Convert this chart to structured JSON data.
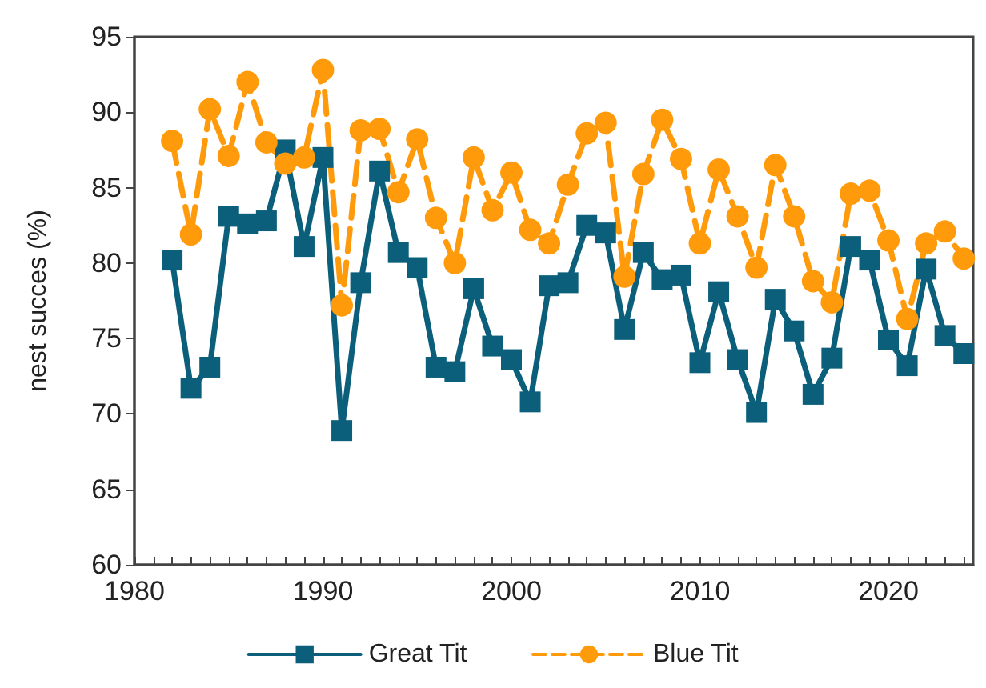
{
  "chart_data": {
    "type": "line",
    "ylabel": "nest succes (%)",
    "x": [
      1982,
      1983,
      1984,
      1985,
      1986,
      1987,
      1988,
      1989,
      1990,
      1991,
      1992,
      1993,
      1994,
      1995,
      1996,
      1997,
      1998,
      1999,
      2000,
      2001,
      2002,
      2003,
      2004,
      2005,
      2006,
      2007,
      2008,
      2009,
      2010,
      2011,
      2012,
      2013,
      2014,
      2015,
      2016,
      2017,
      2018,
      2019,
      2020,
      2021,
      2022,
      2023,
      2024
    ],
    "series": [
      {
        "name": "Great Tit",
        "color": "#0b5f7a",
        "marker": "square",
        "line_style": "solid",
        "values": [
          80.2,
          71.7,
          73.1,
          83.1,
          82.6,
          82.8,
          87.5,
          81.1,
          87.0,
          68.9,
          78.7,
          86.1,
          80.7,
          79.7,
          73.1,
          72.8,
          78.3,
          74.5,
          73.6,
          70.8,
          78.5,
          78.7,
          82.5,
          82.0,
          75.6,
          80.7,
          78.9,
          79.2,
          73.4,
          78.1,
          73.6,
          70.1,
          77.6,
          75.5,
          71.3,
          73.7,
          81.1,
          80.2,
          74.9,
          73.2,
          79.6,
          75.2,
          74.0
        ]
      },
      {
        "name": "Blue Tit",
        "color": "#ff9a0a",
        "marker": "circle",
        "line_style": "dashed",
        "values": [
          88.1,
          81.9,
          90.2,
          87.1,
          92.0,
          88.0,
          86.6,
          87.0,
          92.8,
          77.2,
          88.8,
          88.9,
          84.7,
          88.2,
          83.0,
          80.0,
          87.0,
          83.5,
          86.0,
          82.2,
          81.3,
          85.2,
          88.6,
          89.3,
          79.1,
          85.9,
          89.5,
          86.9,
          81.3,
          86.2,
          83.1,
          79.7,
          86.5,
          83.1,
          78.8,
          77.4,
          84.6,
          84.8,
          81.5,
          76.3,
          81.3,
          82.1,
          80.3
        ]
      }
    ],
    "xlim": [
      1980,
      2024.5
    ],
    "xticks": [
      1980,
      1990,
      2000,
      2010,
      2020
    ],
    "ylim": [
      60,
      95
    ],
    "yticks": [
      60,
      65,
      70,
      75,
      80,
      85,
      90,
      95
    ],
    "grid": false,
    "legend": "bottom"
  }
}
